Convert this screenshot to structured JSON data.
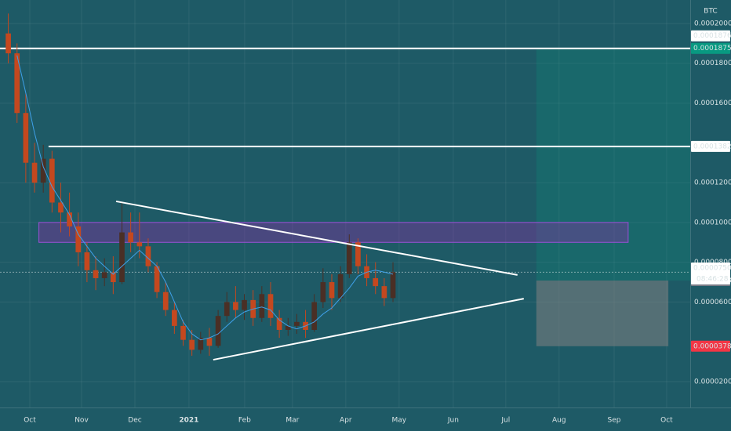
{
  "chart_data": {
    "type": "candlestick",
    "currency": "BTC",
    "open": [
      0.000195,
      0.000185,
      0.000155,
      0.00013,
      0.00012,
      0.000132,
      0.00011,
      0.000105,
      9.8e-05,
      8.5e-05,
      7.6e-05,
      7.2e-05,
      7.5e-05,
      7e-05,
      9.5e-05,
      9e-05,
      8.8e-05,
      7.8e-05,
      6.5e-05,
      5.6e-05,
      4.8e-05,
      4.1e-05,
      3.6e-05,
      4.2e-05,
      3.8e-05,
      5.3e-05,
      6e-05,
      5.6e-05,
      6.1e-05,
      5.2e-05,
      6.4e-05,
      5.2e-05,
      4.6e-05,
      4.8e-05,
      5e-05,
      4.6e-05,
      6e-05,
      7e-05,
      6.2e-05,
      7.4e-05,
      9e-05,
      7.8e-05,
      7.2e-05,
      6.8e-05,
      6.2e-05
    ],
    "high": [
      0.000205,
      0.00019,
      0.000165,
      0.00014,
      0.000139,
      0.000136,
      0.00012,
      0.000115,
      0.000105,
      9e-05,
      8.3e-05,
      8.2e-05,
      8.3e-05,
      0.00011,
      0.000105,
      0.000105,
      9.2e-05,
      8e-05,
      7e-05,
      6e-05,
      5.1e-05,
      4.6e-05,
      4.5e-05,
      4.7e-05,
      5.6e-05,
      6.5e-05,
      6.8e-05,
      6.4e-05,
      6.6e-05,
      6.8e-05,
      7e-05,
      5.6e-05,
      5.2e-05,
      5.4e-05,
      5.6e-05,
      6.4e-05,
      7.7e-05,
      7.4e-05,
      7.8e-05,
      9.4e-05,
      9.2e-05,
      8.4e-05,
      8e-05,
      7.2e-05,
      8e-05
    ],
    "low": [
      0.00018,
      0.00015,
      0.00012,
      0.000115,
      0.000115,
      0.000105,
      9.5e-05,
      9.3e-05,
      7.8e-05,
      7e-05,
      6.6e-05,
      6.8e-05,
      6.4e-05,
      6.9e-05,
      8.5e-05,
      8.2e-05,
      7.5e-05,
      6.2e-05,
      5.3e-05,
      4.4e-05,
      3.8e-05,
      3.3e-05,
      3.4e-05,
      3.3e-05,
      3.7e-05,
      5e-05,
      5.2e-05,
      5.1e-05,
      4.8e-05,
      5e-05,
      4.8e-05,
      4.2e-05,
      4.3e-05,
      4.4e-05,
      4.2e-05,
      4.5e-05,
      5.7e-05,
      5.6e-05,
      6e-05,
      7.2e-05,
      7.4e-05,
      6.8e-05,
      6.4e-05,
      5.8e-05,
      6e-05
    ],
    "close": [
      0.000185,
      0.000155,
      0.00013,
      0.00012,
      0.000132,
      0.00011,
      0.000105,
      9.8e-05,
      8.5e-05,
      7.6e-05,
      7.2e-05,
      7.5e-05,
      7e-05,
      9.5e-05,
      9e-05,
      8.8e-05,
      7.8e-05,
      6.5e-05,
      5.6e-05,
      4.8e-05,
      4.1e-05,
      3.6e-05,
      4.2e-05,
      3.8e-05,
      5.3e-05,
      6e-05,
      5.6e-05,
      6.1e-05,
      5.2e-05,
      6.4e-05,
      5.2e-05,
      4.6e-05,
      4.8e-05,
      5e-05,
      4.6e-05,
      6e-05,
      7e-05,
      6.2e-05,
      7.4e-05,
      9e-05,
      7.8e-05,
      7.2e-05,
      6.8e-05,
      6.2e-05,
      7.5e-05
    ],
    "up_color": "#4a2f25",
    "down_color": "#c4481f",
    "moving_average": {
      "color": "#3fa0e8",
      "values": [
        null,
        0.000184,
        0.000165,
        0.000145,
        0.000128,
        0.000118,
        0.000111,
        0.000104,
        9.4e-05,
        8.8e-05,
        8.2e-05,
        7.8e-05,
        7.4e-05,
        7.8e-05,
        8.2e-05,
        8.6e-05,
        8.2e-05,
        7.8e-05,
        7e-05,
        6e-05,
        5e-05,
        4.4e-05,
        4.1e-05,
        4.2e-05,
        4.4e-05,
        4.8e-05,
        5.2e-05,
        5.5e-05,
        5.65e-05,
        5.75e-05,
        5.6e-05,
        5.1e-05,
        4.8e-05,
        4.65e-05,
        4.8e-05,
        5e-05,
        5.4e-05,
        5.7e-05,
        6.2e-05,
        6.7e-05,
        7.3e-05,
        7.5e-05,
        7.6e-05,
        7.5e-05,
        7.4e-05
      ]
    },
    "xlim": [
      -0.95,
      78
    ],
    "xticks": [
      {
        "value": 2.46,
        "label": "Oct"
      },
      {
        "value": 8.38,
        "label": "Nov"
      },
      {
        "value": 14.48,
        "label": "Dec"
      },
      {
        "value": 20.66,
        "label": "2021",
        "bold": true
      },
      {
        "value": 27.03,
        "label": "Feb"
      },
      {
        "value": 32.5,
        "label": "Mar"
      },
      {
        "value": 38.6,
        "label": "Apr"
      },
      {
        "value": 44.7,
        "label": "May"
      },
      {
        "value": 50.9,
        "label": "Jun"
      },
      {
        "value": 56.9,
        "label": "Jul"
      },
      {
        "value": 63.0,
        "label": "Aug"
      },
      {
        "value": 69.3,
        "label": "Sep"
      },
      {
        "value": 75.3,
        "label": "Oct"
      }
    ],
    "ylim": [
      7e-06,
      0.0002118
    ],
    "yticks": [
      {
        "value": 0.0002,
        "label": "0.0002000"
      },
      {
        "value": 0.00018,
        "label": "0.0001800"
      },
      {
        "value": 0.00016,
        "label": "0.0001600"
      },
      {
        "value": 0.00012,
        "label": "0.0001200"
      },
      {
        "value": 0.0001,
        "label": "0.0001000"
      },
      {
        "value": 8e-05,
        "label": "0.0000800"
      },
      {
        "value": 6e-05,
        "label": "0.0000600"
      },
      {
        "value": 2e-05,
        "label": "0.0000200"
      }
    ],
    "grid": true,
    "horizontal_lines": [
      {
        "value": 0.0001875,
        "x_start": -0.95
      },
      {
        "value": 0.0001382,
        "x_start": 4.6
      }
    ],
    "trendlines": [
      {
        "x": [
          12.33,
          58.24
        ],
        "y": [
          0.0001106,
          7.36e-05
        ]
      },
      {
        "x": [
          23.44,
          58.96
        ],
        "y": [
          3.1e-05,
          6.17e-05
        ]
      }
    ],
    "zone": {
      "x": [
        3.5,
        70.9
      ],
      "y": [
        9e-05,
        0.0001
      ]
    },
    "position": {
      "x_start": 60.4,
      "x_end": 78,
      "stop_x_end": 75.5,
      "entry": 7.08e-05,
      "target": 0.0001875,
      "stop": 3.78e-05
    },
    "last_price": 7.5e-05,
    "countdown": "08:46:28",
    "price_labels": [
      {
        "value": 0.0001876,
        "label": "0.0001876",
        "bg": "#ffffff",
        "fg": "#131722"
      },
      {
        "value": 0.0001875,
        "label": "0.0001875",
        "bg": "#089981",
        "fg": "#ffffff"
      },
      {
        "value": 0.0001382,
        "label": "0.0001382",
        "bg": "#ffffff",
        "fg": "#131722"
      },
      {
        "value": 7.5e-05,
        "label": "0.0000750",
        "bg": "#ffffff",
        "fg": "#131722"
      },
      {
        "value": 7.08e-05,
        "label": "0.0000708",
        "bg": "#787b86",
        "fg": "#ffffff"
      },
      {
        "value": 3.78e-05,
        "label": "0.0000378",
        "bg": "#f23645",
        "fg": "#ffffff"
      }
    ]
  }
}
